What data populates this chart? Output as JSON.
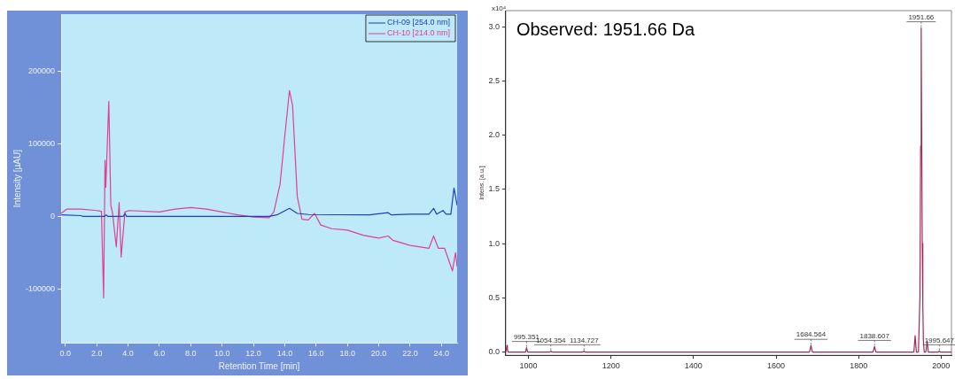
{
  "chart_data": [
    {
      "type": "line",
      "xlabel": "Retention Time [min]",
      "ylabel": "Intensity [µAU]",
      "xlim": [
        -0.27,
        25.0
      ],
      "ylim": [
        -174000,
        278000
      ],
      "xticks": [
        {
          "value": 0,
          "label": "0.0"
        },
        {
          "value": 2,
          "label": "2.0"
        },
        {
          "value": 4,
          "label": "4.0"
        },
        {
          "value": 6,
          "label": "6.0"
        },
        {
          "value": 8,
          "label": "8.0"
        },
        {
          "value": 10,
          "label": "10.0"
        },
        {
          "value": 12,
          "label": "12.0"
        },
        {
          "value": 14,
          "label": "14.0"
        },
        {
          "value": 16,
          "label": "16.0"
        },
        {
          "value": 18,
          "label": "18.0"
        },
        {
          "value": 20,
          "label": "20.0"
        },
        {
          "value": 22,
          "label": "22.0"
        },
        {
          "value": 24,
          "label": "24.0"
        }
      ],
      "yticks": [
        -100000,
        0,
        100000,
        200000
      ],
      "grid": false,
      "legend": "top right",
      "marker": "none",
      "line_style": "solid",
      "series": [
        {
          "name": "CH-09 [254.0 nm]",
          "color": "#1f3fbf",
          "x": [
            -0.27,
            1.0,
            1.1,
            2.5,
            2.6,
            2.7,
            3.7,
            3.8,
            3.9,
            13.0,
            13.5,
            14.3,
            14.8,
            15.5,
            19.4,
            20.6,
            20.8,
            22.0,
            23.2,
            23.5,
            23.7,
            24.1,
            24.3,
            24.6,
            24.8,
            25.0
          ],
          "values": [
            2000,
            1000,
            0,
            0,
            2000,
            0,
            0,
            4000,
            0,
            0,
            2000,
            11000,
            4000,
            2500,
            2000,
            5000,
            2000,
            3000,
            3000,
            11000,
            3000,
            8000,
            3000,
            3000,
            39000,
            15000
          ]
        },
        {
          "name": "CH-10 [214.0 nm]",
          "color": "#e0408f",
          "x": [
            -0.27,
            0.1,
            1.0,
            2.0,
            2.3,
            2.44,
            2.53,
            2.58,
            2.77,
            2.9,
            3.0,
            3.25,
            3.43,
            3.56,
            3.8,
            4.07,
            6.0,
            7.0,
            8.0,
            9.0,
            10.0,
            11.0,
            12.0,
            13.0,
            13.3,
            13.7,
            14.0,
            14.3,
            14.5,
            14.8,
            15.1,
            15.5,
            15.9,
            16.3,
            17.0,
            18.0,
            19.0,
            20.0,
            20.6,
            20.9,
            22.0,
            23.2,
            23.5,
            23.8,
            24.2,
            24.7,
            24.9,
            25.0
          ],
          "values": [
            4000,
            10000,
            10000,
            8000,
            7000,
            -112000,
            77000,
            40000,
            158000,
            15000,
            6000,
            -42000,
            19000,
            -56000,
            6000,
            8000,
            6000,
            10000,
            12000,
            10000,
            6000,
            2000,
            -1000,
            -2000,
            6000,
            44000,
            110000,
            173000,
            152000,
            27000,
            -4000,
            -5000,
            4000,
            -12000,
            -17000,
            -19000,
            -26000,
            -30000,
            -27000,
            -33000,
            -40000,
            -44000,
            -27000,
            -44000,
            -44000,
            -75000,
            -50000,
            -69000
          ]
        }
      ]
    },
    {
      "type": "line",
      "ylabel": "Intens. [a.u.]",
      "xlim": [
        945,
        2025
      ],
      "ylim": [
        -0.03,
        3.15
      ],
      "xticks": [
        1000,
        1200,
        1400,
        1600,
        1800,
        2000
      ],
      "yticks": [
        {
          "value": 0,
          "label": "0.0"
        },
        0.5,
        {
          "value": 1,
          "label": "1.0"
        },
        1.5,
        {
          "value": 2,
          "label": "2.0"
        },
        2.5,
        {
          "value": 3,
          "label": "3.0"
        }
      ],
      "grid": false,
      "legend": false,
      "marker": "none",
      "line_style": "solid",
      "series": [
        {
          "color": "#a0285a",
          "x": [
            945,
            948,
            949,
            951,
            993,
            995.351,
            998,
            1052,
            1054.354,
            1057,
            1132,
            1134.727,
            1137,
            1681,
            1684.564,
            1688,
            1835,
            1838.607,
            1842,
            1934,
            1937,
            1940,
            1945,
            1948.5,
            1950.3,
            1951.66,
            1953,
            1954.2,
            1955.6,
            1957,
            1959,
            1963,
            1966,
            1969,
            1993,
            1995.647,
            1998,
            2025
          ],
          "values": [
            0,
            0.06,
            0.02,
            0,
            0,
            0.04,
            0,
            0,
            0.01,
            0,
            0,
            0.01,
            0,
            0,
            0.06,
            0,
            0,
            0.05,
            0,
            0,
            0.15,
            0,
            0,
            0.5,
            1.9,
            2.99,
            1.9,
            1.0,
            0.45,
            0.1,
            0,
            0,
            0.1,
            0,
            0,
            0.01,
            0,
            0
          ]
        }
      ],
      "annotations": [
        "Observed: 1951.66 Da",
        "x10⁴",
        {
          "text": "995.351",
          "x": 995.351,
          "y": 0.04
        },
        {
          "text": "1054.354",
          "x": 1054.354,
          "y": 0.01
        },
        {
          "text": "1134.727",
          "x": 1134.727,
          "y": 0.01
        },
        {
          "text": "1684.564",
          "x": 1684.564,
          "y": 0.06
        },
        {
          "text": "1838.607",
          "x": 1838.607,
          "y": 0.05
        },
        {
          "text": "1951.66",
          "x": 1951.66,
          "y": 2.99
        },
        {
          "text": "1995.647",
          "x": 1995.647,
          "y": 0.01
        }
      ]
    }
  ]
}
